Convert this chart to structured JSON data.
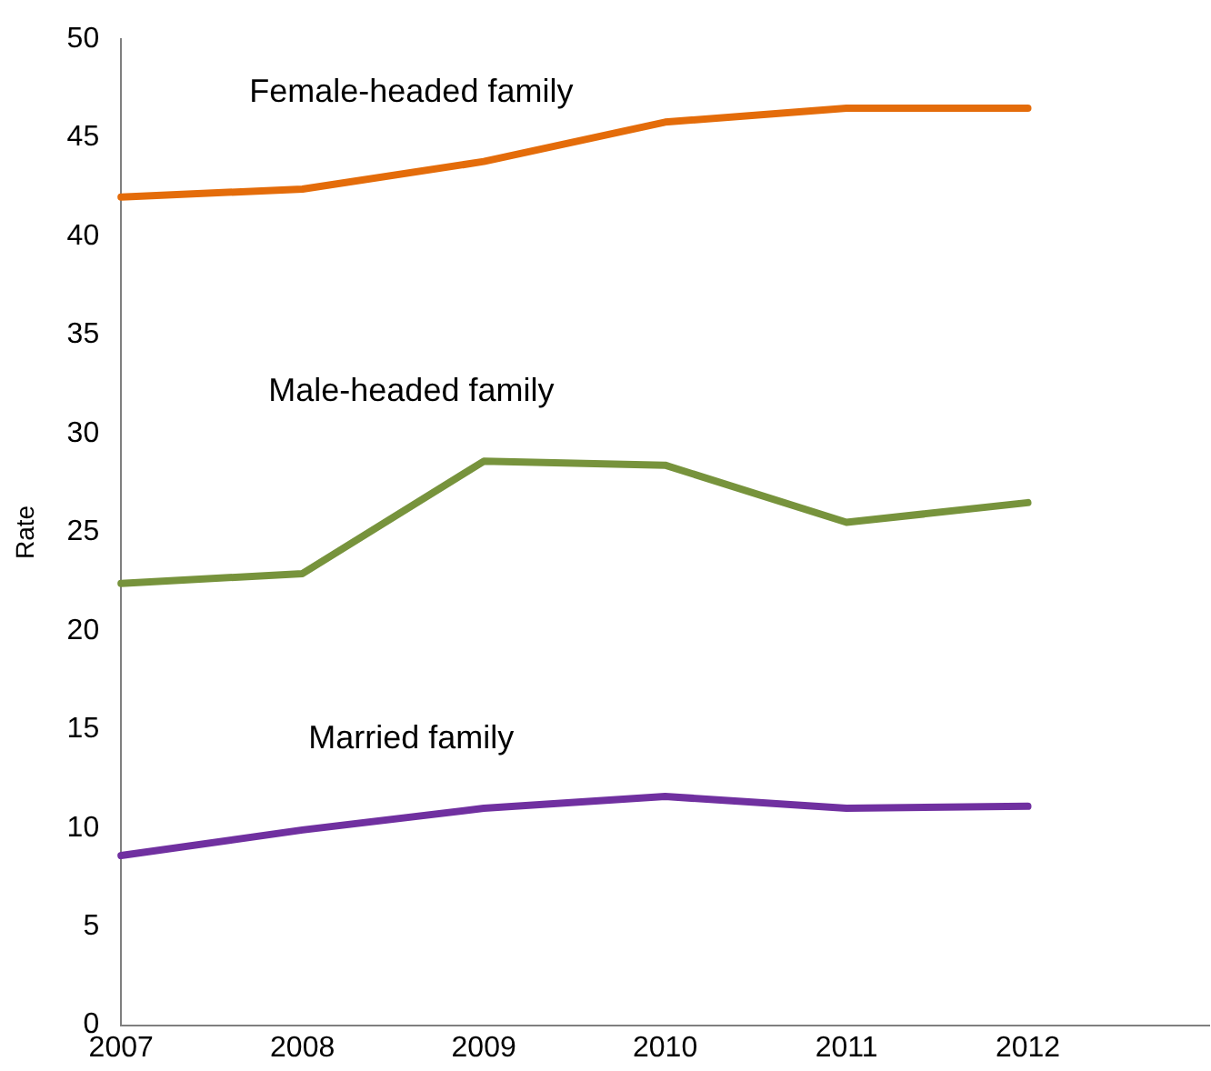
{
  "chart_data": {
    "type": "line",
    "ylabel": "Rate",
    "x": [
      2007,
      2008,
      2009,
      2010,
      2011,
      2012
    ],
    "xlim": [
      2007,
      2013
    ],
    "xticks": [
      2007,
      2008,
      2009,
      2010,
      2011,
      2012
    ],
    "ylim": [
      0,
      50
    ],
    "yticks": [
      0,
      5,
      10,
      15,
      20,
      25,
      30,
      35,
      40,
      45,
      50
    ],
    "grid": false,
    "legend": false,
    "marker": "none",
    "line_style": "solid",
    "series": [
      {
        "name": "Female-headed family",
        "color": "#e46c0a",
        "values": [
          42.0,
          42.4,
          43.8,
          45.8,
          46.5,
          46.5
        ]
      },
      {
        "name": "Male-headed family",
        "color": "#77933c",
        "values": [
          22.4,
          22.9,
          28.6,
          28.4,
          25.5,
          26.5
        ]
      },
      {
        "name": "Married family",
        "color": "#7030a0",
        "values": [
          8.6,
          9.9,
          11.0,
          11.6,
          11.0,
          11.1
        ]
      }
    ]
  }
}
